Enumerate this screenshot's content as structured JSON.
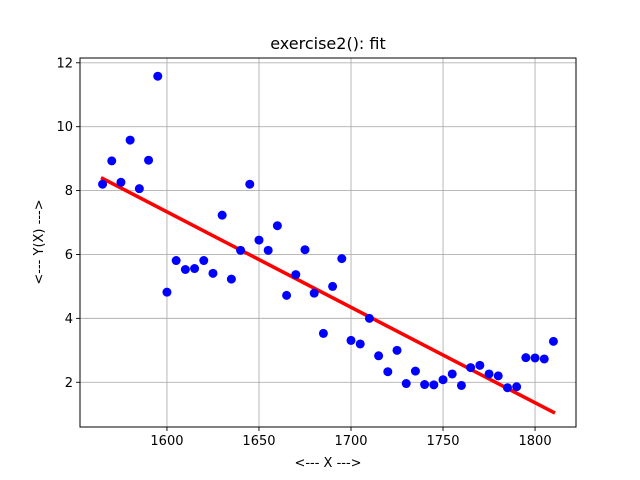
{
  "chart_data": {
    "type": "scatter",
    "title": "exercise2(): fit",
    "xlabel": "<--- X --->",
    "ylabel": "<--- Y(X) --->",
    "xlim": [
      1552.75,
      1822.25
    ],
    "ylim": [
      0.6,
      12.15
    ],
    "xticks": [
      1600,
      1650,
      1700,
      1750,
      1800
    ],
    "yticks": [
      2,
      4,
      6,
      8,
      10,
      12
    ],
    "grid": true,
    "series": [
      {
        "kind": "scatter",
        "color": "#0000ff",
        "x": [
          1565,
          1570,
          1575,
          1580,
          1585,
          1590,
          1595,
          1600,
          1605,
          1610,
          1615,
          1620,
          1625,
          1630,
          1635,
          1640,
          1645,
          1650,
          1655,
          1660,
          1665,
          1670,
          1675,
          1680,
          1685,
          1690,
          1695,
          1700,
          1705,
          1710,
          1715,
          1720,
          1725,
          1730,
          1735,
          1740,
          1745,
          1750,
          1755,
          1760,
          1765,
          1770,
          1775,
          1780,
          1785,
          1790,
          1795,
          1800,
          1805,
          1810
        ],
        "y": [
          8.2,
          8.93,
          8.26,
          9.58,
          8.06,
          8.95,
          11.58,
          4.82,
          5.81,
          5.53,
          5.56,
          5.81,
          5.41,
          7.23,
          5.23,
          6.13,
          8.2,
          6.45,
          6.13,
          6.9,
          4.72,
          5.37,
          6.15,
          4.79,
          3.53,
          5.0,
          5.87,
          3.31,
          3.2,
          4.0,
          2.83,
          2.33,
          3.0,
          1.96,
          2.35,
          1.93,
          1.92,
          2.08,
          2.26,
          1.9,
          2.46,
          2.53,
          2.26,
          2.2,
          1.83,
          1.86,
          2.77,
          2.76,
          2.73,
          3.28
        ]
      },
      {
        "kind": "line",
        "color": "#ff0000",
        "x": [
          1565,
          1810
        ],
        "y": [
          8.38,
          1.06
        ]
      }
    ]
  }
}
